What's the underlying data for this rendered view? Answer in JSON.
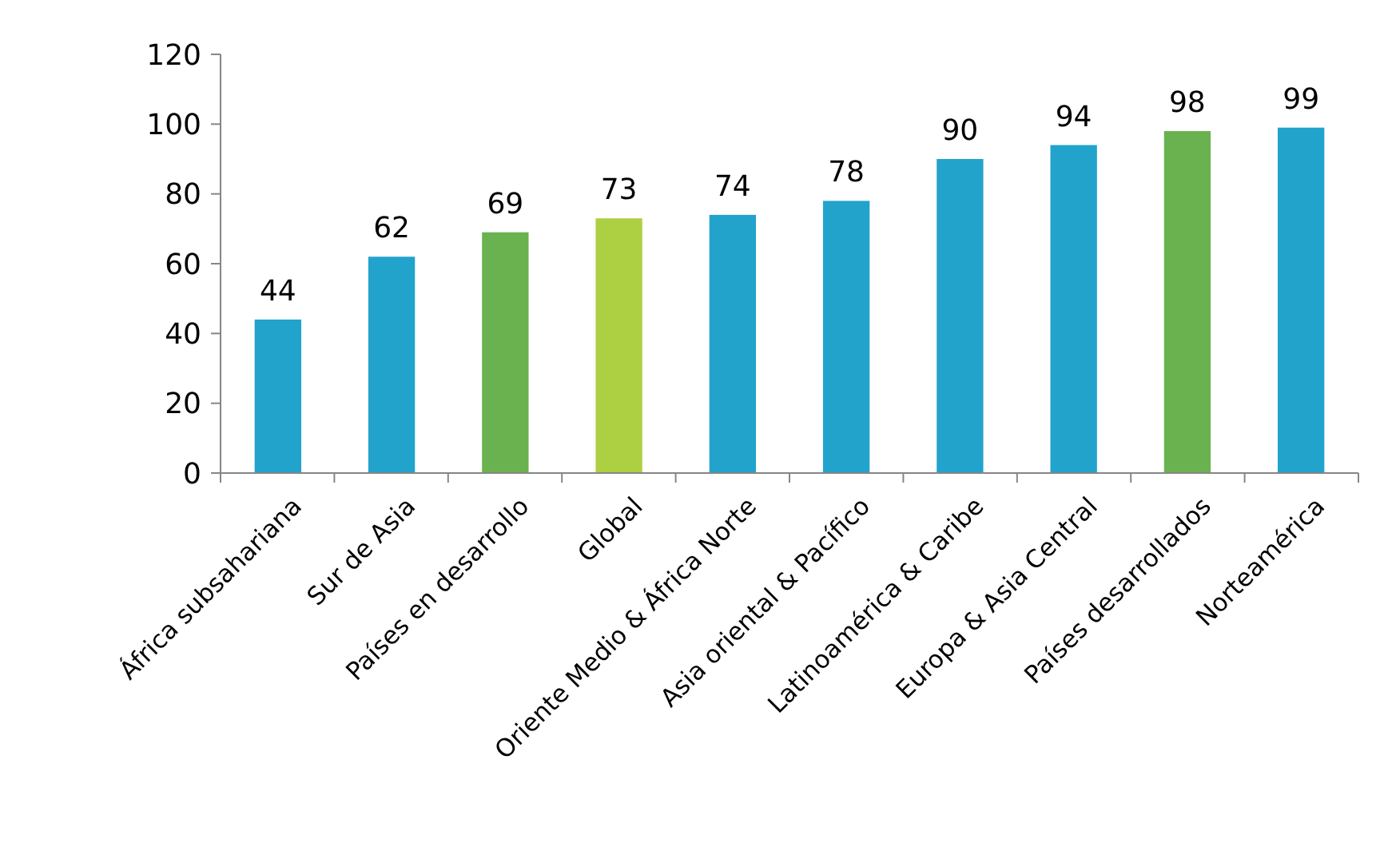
{
  "chart_data": {
    "type": "bar",
    "categories": [
      "África subsahariana",
      "Sur de Asia",
      "Países en desarrollo",
      "Global",
      "Oriente Medio & África Norte",
      "Asia oriental & Pacífico",
      "Latinoamérica & Caribe",
      "Europa & Asia Central",
      "Países desarrollados",
      "Norteamérica"
    ],
    "values": [
      44,
      62,
      69,
      73,
      74,
      78,
      90,
      94,
      98,
      99
    ],
    "colors": [
      "#21a3cc",
      "#21a3cc",
      "#6ab24f",
      "#add042",
      "#21a3cc",
      "#21a3cc",
      "#21a3cc",
      "#21a3cc",
      "#6ab24f",
      "#21a3cc"
    ],
    "ylim": [
      0,
      120
    ],
    "yticks": [
      0,
      20,
      40,
      60,
      80,
      100,
      120
    ],
    "grid": false,
    "data_labels": true
  }
}
